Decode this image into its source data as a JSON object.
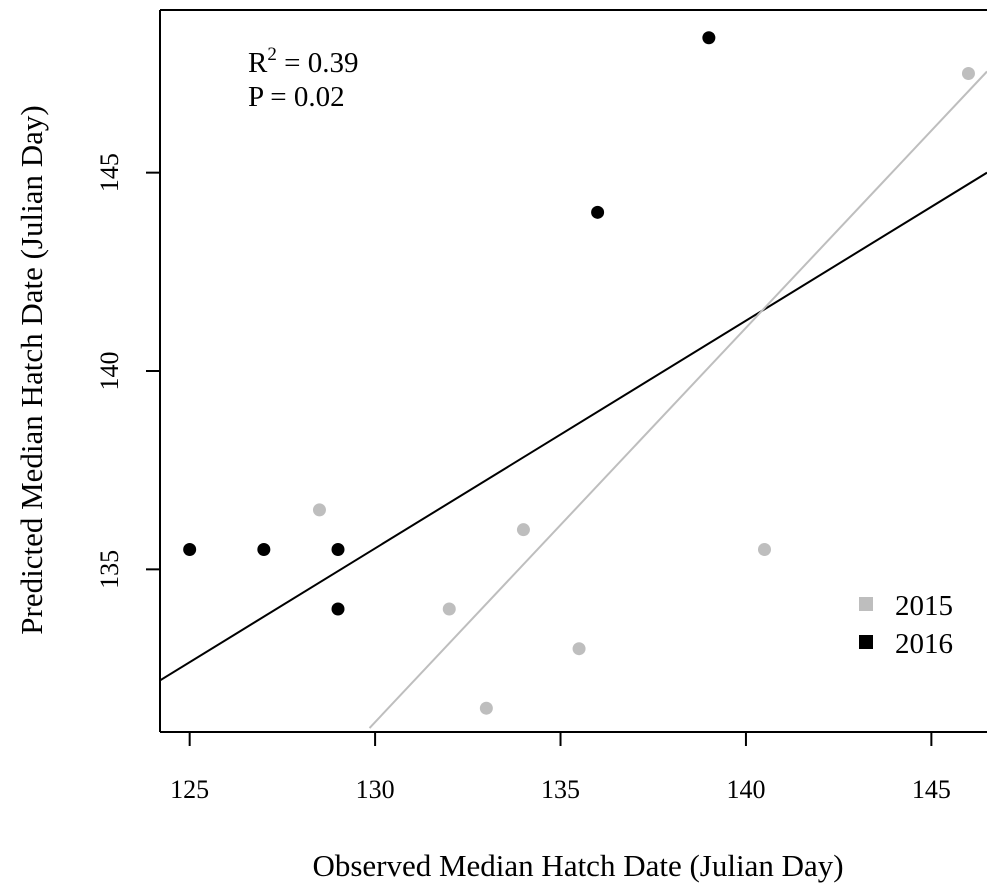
{
  "chart_data": {
    "type": "scatter",
    "title": "",
    "xlabel": "Observed Median Hatch Date (Julian Day)",
    "ylabel": "Predicted Median Hatch Date (Julian Day)",
    "xlim": [
      124.2,
      146.5
    ],
    "ylim": [
      130.9,
      149.1
    ],
    "xticks": [
      125,
      130,
      135,
      140,
      145
    ],
    "yticks": [
      135,
      140,
      145
    ],
    "grid": false,
    "legend_position": "bottom-right",
    "annotations": {
      "r2_prefix": "R",
      "r2_exponent": "2",
      "r2_value": " = 0.39",
      "p_value": "P = 0.02"
    },
    "series": [
      {
        "name": "2015",
        "color": "#bebebe",
        "marker": "circle",
        "legend_marker": "square",
        "points": [
          {
            "x": 128.5,
            "y": 136.5
          },
          {
            "x": 132.0,
            "y": 134.0
          },
          {
            "x": 133.0,
            "y": 131.5
          },
          {
            "x": 134.0,
            "y": 136.0
          },
          {
            "x": 135.5,
            "y": 133.0
          },
          {
            "x": 140.5,
            "y": 135.5
          },
          {
            "x": 146.0,
            "y": 147.5
          }
        ]
      },
      {
        "name": "2016",
        "color": "#000000",
        "marker": "circle",
        "legend_marker": "square",
        "points": [
          {
            "x": 125.0,
            "y": 135.5
          },
          {
            "x": 127.0,
            "y": 135.5
          },
          {
            "x": 129.0,
            "y": 135.5
          },
          {
            "x": 129.0,
            "y": 134.0
          },
          {
            "x": 136.0,
            "y": 144.0
          },
          {
            "x": 139.0,
            "y": 148.4
          }
        ]
      }
    ],
    "lines": [
      {
        "kind": "regression",
        "color": "#000000",
        "x": [
          124.2,
          146.5
        ],
        "y": [
          132.2,
          145.0
        ]
      },
      {
        "kind": "one-to-one",
        "color": "#bebebe",
        "x": [
          129.85,
          146.5
        ],
        "y": [
          131.0,
          147.55
        ]
      }
    ]
  }
}
